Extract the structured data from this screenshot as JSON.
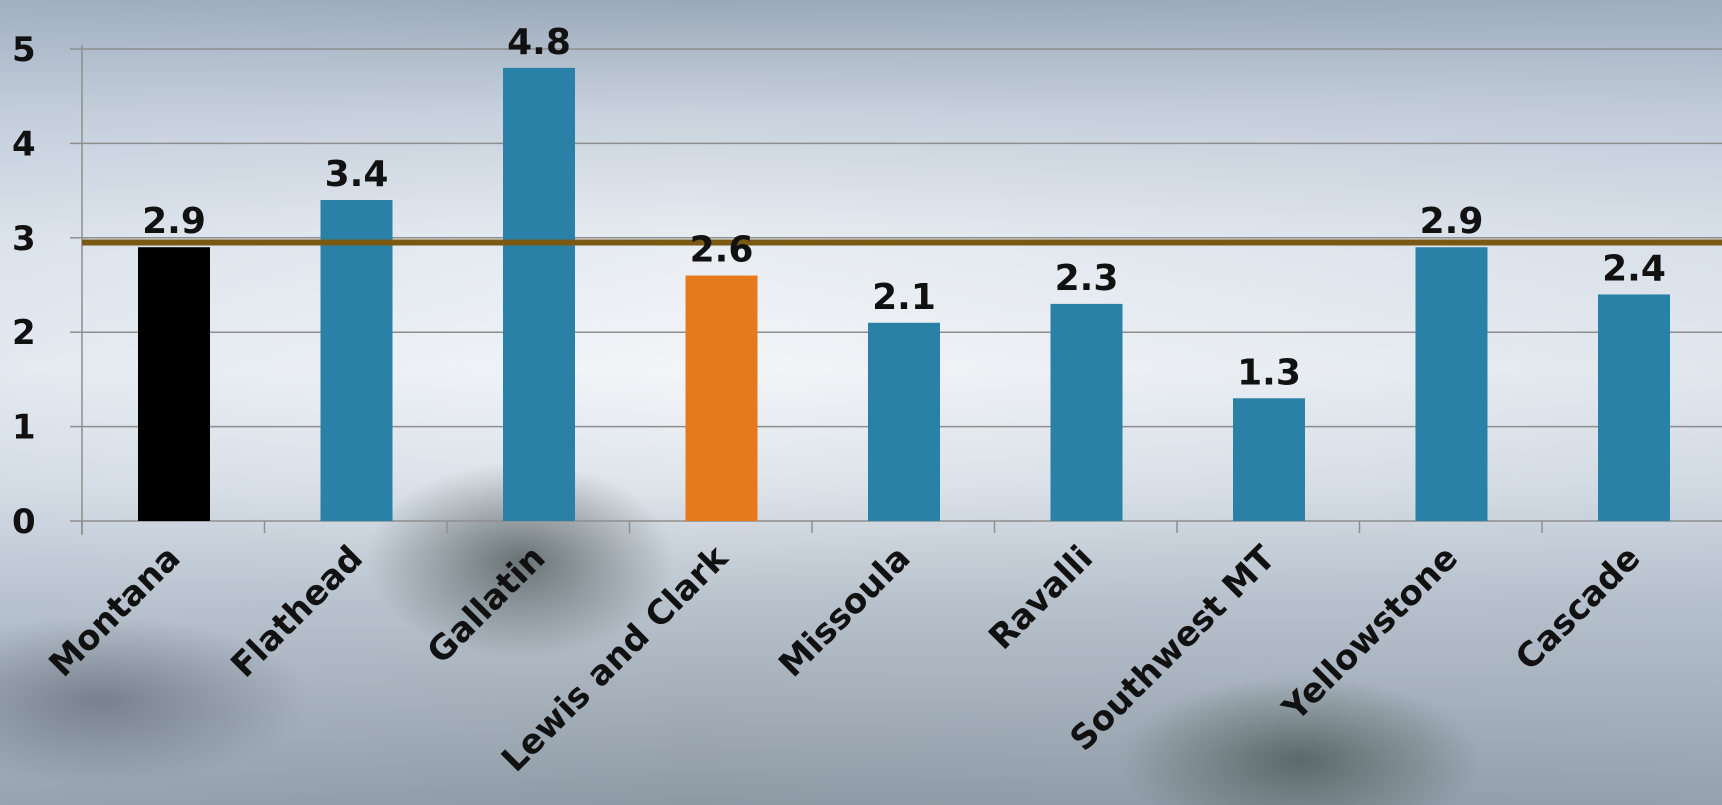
{
  "chart_data": {
    "type": "bar",
    "title": "",
    "xlabel": "",
    "ylabel": "",
    "categories": [
      "Montana",
      "Flathead",
      "Gallatin",
      "Lewis and Clark",
      "Missoula",
      "Ravalli",
      "Southwest MT",
      "Yellowstone",
      "Cascade"
    ],
    "values": [
      2.9,
      3.4,
      4.8,
      2.6,
      2.1,
      2.3,
      1.3,
      2.9,
      2.4
    ],
    "value_labels": [
      "2.9",
      "3.4",
      "4.8",
      "2.6",
      "2.1",
      "2.3",
      "1.3",
      "2.9",
      "2.4"
    ],
    "bar_colors": [
      "#000000",
      "#2a81a8",
      "#2a81a8",
      "#e6781e",
      "#2a81a8",
      "#2a81a8",
      "#2a81a8",
      "#2a81a8",
      "#2a81a8"
    ],
    "reference_line": {
      "value": 2.95,
      "color": "#7a5a12"
    },
    "ylim": [
      0,
      5
    ],
    "yticks": [
      "0",
      "1",
      "2",
      "3",
      "4",
      "5"
    ],
    "grid": true,
    "legend": "none"
  }
}
